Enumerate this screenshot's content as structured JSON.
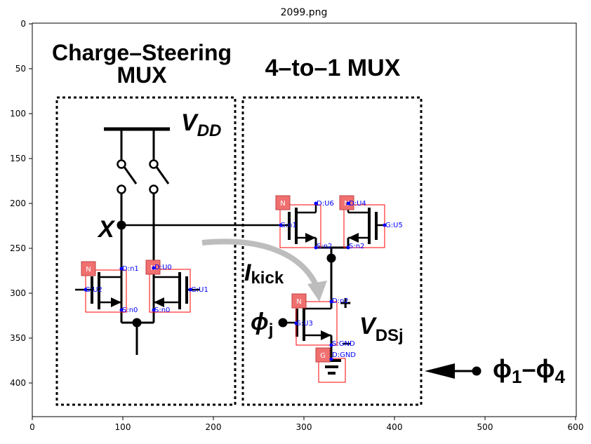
{
  "figure": {
    "title": "2099.png",
    "x_ticks": [
      "0",
      "100",
      "200",
      "300",
      "400",
      "500",
      "600"
    ],
    "y_ticks": [
      "0",
      "50",
      "100",
      "150",
      "200",
      "250",
      "300",
      "350",
      "400"
    ]
  },
  "diagram": {
    "left_title_line1": "Charge–Steering",
    "left_title_line2": "MUX",
    "right_title": "4–to–1 MUX",
    "vdd_main": "V",
    "vdd_sub": "DD",
    "x_label": "X",
    "ikick_main": "I",
    "ikick_sub": "kick",
    "phi_j_main": "ϕ",
    "phi_j_sub": "j",
    "vdsj_main": "V",
    "vdsj_sub": "DSj",
    "plus": "+",
    "phi_range_a": "ϕ",
    "phi_range_a_sub": "1",
    "phi_range_dash": "–",
    "phi_range_b": "ϕ",
    "phi_range_b_sub": "4"
  },
  "badges": {
    "n": "N",
    "g": "G"
  },
  "annotations": {
    "u6_d": "D:U6",
    "u6_g": "G:n1",
    "u6_s": "S:n2",
    "u4_d": "D:U4",
    "u4_g": "G:U5",
    "u4_s": "S:n2",
    "left_d": "D:n1",
    "left_g": "G:U2",
    "left_s": "S:n0",
    "right_d": "D:U0",
    "right_g": "G:U1",
    "right_s": "S:n0",
    "u3_d": "D:n2",
    "u3_g": "G:U3",
    "u3_s": "S:GND",
    "gnd_d": "D:GND"
  }
}
